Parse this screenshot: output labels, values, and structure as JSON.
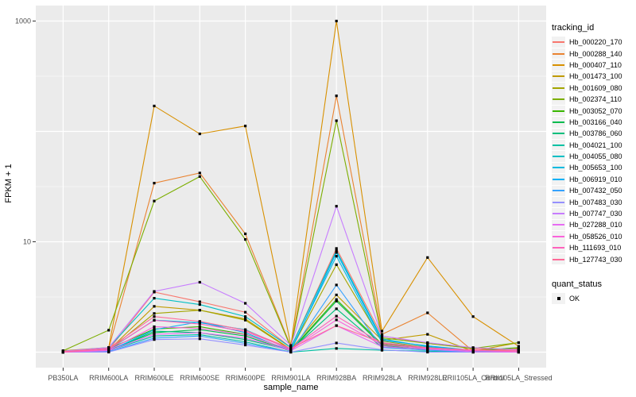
{
  "chart_data": {
    "type": "line",
    "title": "",
    "xlabel": "sample_name",
    "ylabel": "FPKM + 1",
    "y_scale": "log10",
    "y_axis_ticks": [
      10,
      1000
    ],
    "y_gridlines_major": [
      1,
      10,
      100,
      1000
    ],
    "y_gridlines_minor": [
      3.162,
      31.62,
      316.2
    ],
    "ylim": [
      0.72,
      1380
    ],
    "grid": true,
    "panel_bg": "#EBEBEB",
    "grid_color": "#FFFFFF",
    "axis_text_color": "#4D4D4D",
    "point_shape": "filled-square",
    "point_color": "#000000",
    "categories": [
      "PB350LA",
      "RRIM600LA",
      "RRIM600LE",
      "RRIM600SE",
      "RRIM600PE",
      "RRIM901LA",
      "RRIM928BA",
      "RRIM928LA",
      "RRIM928LE",
      "RRII105LA_Control",
      "RRII105LA_Stressed"
    ],
    "series": [
      {
        "name": "Hb_000220_170",
        "color": "#F8766D",
        "values": [
          1.02,
          1.05,
          3.5,
          2.86,
          2.3,
          1.1,
          8.7,
          1.4,
          1.2,
          1.08,
          1.04
        ]
      },
      {
        "name": "Hb_000288_140",
        "color": "#EA8331",
        "values": [
          1.0,
          1.08,
          34,
          42,
          11.8,
          1.12,
          210,
          1.45,
          2.27,
          1.02,
          1.08
        ]
      },
      {
        "name": "Hb_000407_110",
        "color": "#D89000",
        "values": [
          1.03,
          1.1,
          170,
          95,
          112,
          1.15,
          1000,
          1.55,
          7.2,
          2.1,
          1.13
        ]
      },
      {
        "name": "Hb_001473_100",
        "color": "#C09B00",
        "values": [
          1.0,
          1.04,
          2.6,
          2.4,
          2.0,
          1.06,
          3.3,
          1.28,
          1.45,
          1.02,
          1.22
        ]
      },
      {
        "name": "Hb_001609_080",
        "color": "#A3A500",
        "values": [
          1.0,
          1.04,
          2.24,
          2.4,
          1.95,
          1.05,
          6.2,
          1.26,
          1.1,
          1.01,
          1.06
        ]
      },
      {
        "name": "Hb_002374_110",
        "color": "#7CAE00",
        "values": [
          1.03,
          1.58,
          23.4,
          39,
          10.5,
          1.1,
          125,
          1.35,
          1.2,
          1.08,
          1.22
        ]
      },
      {
        "name": "Hb_003052_070",
        "color": "#39B600",
        "values": [
          1.0,
          1.07,
          1.62,
          1.7,
          1.45,
          1.04,
          3.0,
          1.18,
          1.09,
          1.03,
          1.1
        ]
      },
      {
        "name": "Hb_003166_040",
        "color": "#00BB4E",
        "values": [
          1.0,
          1.04,
          1.5,
          1.6,
          1.4,
          1.02,
          2.9,
          1.15,
          1.05,
          1.0,
          1.04
        ]
      },
      {
        "name": "Hb_003786_060",
        "color": "#00BF7D",
        "values": [
          1.0,
          1.02,
          1.55,
          1.5,
          1.3,
          1.04,
          2.47,
          1.1,
          1.08,
          1.02,
          1.0
        ]
      },
      {
        "name": "Hb_004021_100",
        "color": "#00C1A3",
        "values": [
          1.0,
          1.03,
          1.4,
          1.44,
          1.24,
          1.0,
          1.08,
          1.04,
          1.02,
          1.0,
          1.01
        ]
      },
      {
        "name": "Hb_004055_080",
        "color": "#00BFC4",
        "values": [
          1.02,
          1.1,
          3.08,
          2.7,
          2.1,
          1.1,
          8.3,
          1.32,
          1.12,
          1.04,
          1.0
        ]
      },
      {
        "name": "Hb_005653_100",
        "color": "#00BAE0",
        "values": [
          1.0,
          1.05,
          1.95,
          1.85,
          1.6,
          1.05,
          7.4,
          1.22,
          1.1,
          1.01,
          1.04
        ]
      },
      {
        "name": "Hb_006919_010",
        "color": "#00B0F6",
        "values": [
          1.0,
          1.02,
          1.6,
          1.88,
          1.5,
          1.02,
          8.0,
          1.28,
          1.14,
          1.04,
          1.0
        ]
      },
      {
        "name": "Hb_007432_050",
        "color": "#35A2FF",
        "values": [
          1.0,
          1.01,
          1.34,
          1.4,
          1.2,
          1.0,
          4.06,
          1.1,
          1.04,
          1.0,
          1.01
        ]
      },
      {
        "name": "Hb_007483_030",
        "color": "#9590FF",
        "values": [
          1.0,
          1.0,
          1.3,
          1.32,
          1.16,
          1.0,
          1.21,
          1.05,
          1.0,
          1.0,
          1.0
        ]
      },
      {
        "name": "Hb_007747_030",
        "color": "#C77CFF",
        "values": [
          1.02,
          1.1,
          3.55,
          4.3,
          2.77,
          1.15,
          21,
          1.4,
          1.22,
          1.1,
          1.05
        ]
      },
      {
        "name": "Hb_027288_010",
        "color": "#E76BF3",
        "values": [
          1.0,
          1.03,
          1.45,
          1.5,
          1.34,
          1.03,
          1.74,
          1.12,
          1.06,
          1.01,
          1.0
        ]
      },
      {
        "name": "Hb_058526_010",
        "color": "#FA62DB",
        "values": [
          1.0,
          1.04,
          1.7,
          1.64,
          1.44,
          1.05,
          1.96,
          1.16,
          1.08,
          1.03,
          1.04
        ]
      },
      {
        "name": "Hb_111693_010",
        "color": "#FF62BC",
        "values": [
          1.0,
          1.06,
          1.94,
          1.8,
          1.54,
          1.07,
          2.12,
          1.2,
          1.1,
          1.04,
          1.01
        ]
      },
      {
        "name": "Hb_127743_030",
        "color": "#FF6A98",
        "values": [
          1.01,
          1.08,
          2.1,
          1.9,
          1.58,
          1.08,
          1.74,
          1.22,
          1.09,
          1.05,
          1.03
        ]
      }
    ],
    "legend": {
      "title": "tracking_id",
      "position": "right"
    },
    "legend2": {
      "title": "quant_status",
      "items": [
        "OK"
      ]
    }
  }
}
